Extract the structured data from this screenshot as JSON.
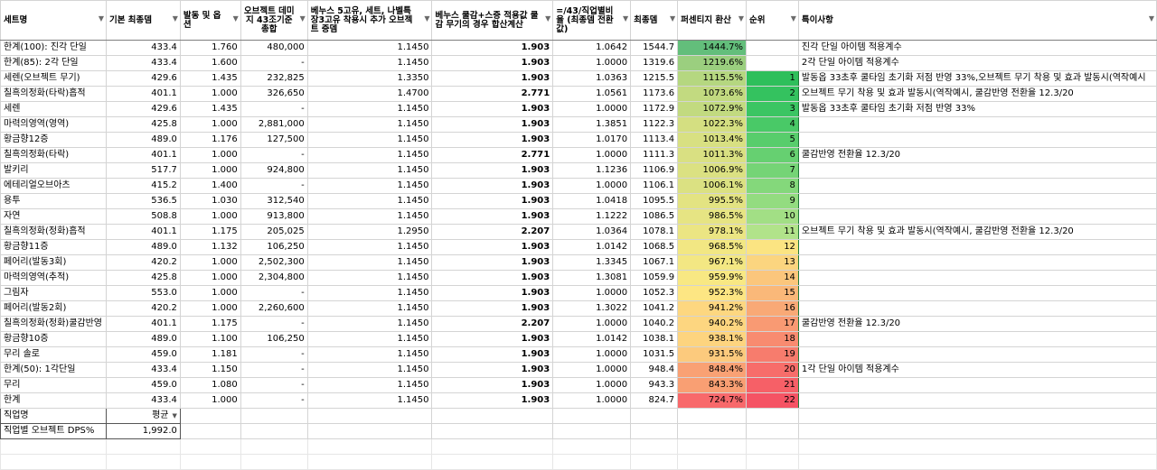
{
  "headers": [
    "세트명",
    "기본 최종뎀",
    "발동 및 옵션",
    "오브젝트 데미지 43조기준 총합",
    "베누스 5고유, 세트, 나벨특장3고유 착용시 추가 오브젝트 증뎀",
    "베누스 쿨감+스증 적용값 쿨감 무기의 경우 합산계산",
    "=/43/직업별비율 (최종뎀 전환값)",
    "최종뎀",
    "퍼센티지 환산",
    "순위",
    "특이사항"
  ],
  "rows": [
    {
      "name": "한계(100): 진각 단일",
      "base": "433.4",
      "opt": "1.760",
      "obj": "480,000",
      "inc": "1.1450",
      "cd": "1.903",
      "conv": "1.0642",
      "final": "1544.7",
      "pct": "1444.7%",
      "color": "#63be7b",
      "rank": "",
      "note": "진각 단일 아이템 적용계수"
    },
    {
      "name": "한계(85): 2각 단일",
      "base": "433.4",
      "opt": "1.600",
      "obj": "-",
      "inc": "1.1450",
      "cd": "1.903",
      "conv": "1.0000",
      "final": "1319.6",
      "pct": "1219.6%",
      "color": "#9bcf7f",
      "rank": "",
      "note": "2각 단일 아이템 적용계수"
    },
    {
      "name": "세렌(오브젝트 무기)",
      "base": "429.6",
      "opt": "1.435",
      "obj": "232,825",
      "inc": "1.3350",
      "cd": "1.903",
      "conv": "1.0363",
      "final": "1215.5",
      "pct": "1115.5%",
      "color": "#b5d780",
      "rank": "1",
      "rankColor": "#2ebf5b",
      "note": "발동옵 33초후 쿨타임 초기화 저점 반영 33%,오브젝트 무기 착용 및 효과 발동시(역작예시"
    },
    {
      "name": "칠흑의정화(타락)흡적",
      "base": "401.1",
      "opt": "1.000",
      "obj": "326,650",
      "inc": "1.4700",
      "cd": "2.771",
      "conv": "1.0561",
      "final": "1173.6",
      "pct": "1073.6%",
      "color": "#c2da80",
      "rank": "2",
      "rankColor": "#34c25f",
      "note": "오브젝트 무기 착용 및 효과 발동시(역작예시, 쿨감반영 전환율 12.3/20"
    },
    {
      "name": "세렌",
      "base": "429.6",
      "opt": "1.435",
      "obj": "-",
      "inc": "1.1450",
      "cd": "1.903",
      "conv": "1.0000",
      "final": "1172.9",
      "pct": "1072.9%",
      "color": "#c2da80",
      "rank": "3",
      "rankColor": "#3bc563",
      "note": "발동옵 33초후 쿨타임 초기화 저점 반영 33%"
    },
    {
      "name": "마력의영역(영역)",
      "base": "425.8",
      "opt": "1.000",
      "obj": "2,881,000",
      "inc": "1.1450",
      "cd": "1.903",
      "conv": "1.3851",
      "final": "1122.3",
      "pct": "1022.3%",
      "color": "#d4df81",
      "rank": "4",
      "rankColor": "#49c967",
      "note": ""
    },
    {
      "name": "황금향12증",
      "base": "489.0",
      "opt": "1.176",
      "obj": "127,500",
      "inc": "1.1450",
      "cd": "1.903",
      "conv": "1.0170",
      "final": "1113.4",
      "pct": "1013.4%",
      "color": "#d8e082",
      "rank": "5",
      "rankColor": "#58cd6c",
      "note": ""
    },
    {
      "name": "칠흑의정화(타락)",
      "base": "401.1",
      "opt": "1.000",
      "obj": "-",
      "inc": "1.1450",
      "cd": "2.771",
      "conv": "1.0000",
      "final": "1111.3",
      "pct": "1011.3%",
      "color": "#d9e082",
      "rank": "6",
      "rankColor": "#66d071",
      "note": "쿨감반영 전환율 12.3/20"
    },
    {
      "name": "발키리",
      "base": "517.7",
      "opt": "1.000",
      "obj": "924,800",
      "inc": "1.1450",
      "cd": "1.903",
      "conv": "1.1236",
      "final": "1106.9",
      "pct": "1006.9%",
      "color": "#dbe182",
      "rank": "7",
      "rankColor": "#75d476",
      "note": ""
    },
    {
      "name": "에테리얼오브아츠",
      "base": "415.2",
      "opt": "1.400",
      "obj": "-",
      "inc": "1.1450",
      "cd": "1.903",
      "conv": "1.0000",
      "final": "1106.1",
      "pct": "1006.1%",
      "color": "#dbe182",
      "rank": "8",
      "rankColor": "#84d87b",
      "note": ""
    },
    {
      "name": "용투",
      "base": "536.5",
      "opt": "1.030",
      "obj": "312,540",
      "inc": "1.1450",
      "cd": "1.903",
      "conv": "1.0418",
      "final": "1095.5",
      "pct": "995.5%",
      "color": "#e3e382",
      "rank": "9",
      "rankColor": "#93dc80",
      "note": ""
    },
    {
      "name": "자연",
      "base": "508.8",
      "opt": "1.000",
      "obj": "913,800",
      "inc": "1.1450",
      "cd": "1.903",
      "conv": "1.1222",
      "final": "1086.5",
      "pct": "986.5%",
      "color": "#e6e483",
      "rank": "10",
      "rankColor": "#a2df85",
      "note": ""
    },
    {
      "name": "칠흑의정화(정화)흡적",
      "base": "401.1",
      "opt": "1.175",
      "obj": "205,025",
      "inc": "1.2950",
      "cd": "2.207",
      "conv": "1.0364",
      "final": "1078.1",
      "pct": "978.1%",
      "color": "#ebe583",
      "rank": "11",
      "rankColor": "#b1e38a",
      "note": "오브젝트 무기 착용 및 효과 발동시(역작예시, 쿨감반영 전환율 12.3/20"
    },
    {
      "name": "황금향11증",
      "base": "489.0",
      "opt": "1.132",
      "obj": "106,250",
      "inc": "1.1450",
      "cd": "1.903",
      "conv": "1.0142",
      "final": "1068.5",
      "pct": "968.5%",
      "color": "#f2e783",
      "rank": "12",
      "rankColor": "#fbe482",
      "note": ""
    },
    {
      "name": "페어리(발동3회)",
      "base": "420.2",
      "opt": "1.000",
      "obj": "2,502,300",
      "inc": "1.1450",
      "cd": "1.903",
      "conv": "1.3345",
      "final": "1067.1",
      "pct": "967.1%",
      "color": "#f3e783",
      "rank": "13",
      "rankColor": "#fbd57f",
      "note": ""
    },
    {
      "name": "마력의영역(추적)",
      "base": "425.8",
      "opt": "1.000",
      "obj": "2,304,800",
      "inc": "1.1450",
      "cd": "1.903",
      "conv": "1.3081",
      "final": "1059.9",
      "pct": "959.9%",
      "color": "#f8e883",
      "rank": "14",
      "rankColor": "#fbc67c",
      "note": ""
    },
    {
      "name": "그림자",
      "base": "553.0",
      "opt": "1.000",
      "obj": "-",
      "inc": "1.1450",
      "cd": "1.903",
      "conv": "1.0000",
      "final": "1052.3",
      "pct": "952.3%",
      "color": "#fde683",
      "rank": "15",
      "rankColor": "#fab879",
      "note": ""
    },
    {
      "name": "페어리(발동2회)",
      "base": "420.2",
      "opt": "1.000",
      "obj": "2,260,600",
      "inc": "1.1450",
      "cd": "1.903",
      "conv": "1.3022",
      "final": "1041.2",
      "pct": "941.2%",
      "color": "#fdd780",
      "rank": "16",
      "rankColor": "#f9a976",
      "note": ""
    },
    {
      "name": "칠흑의정화(정화)쿨감반영",
      "base": "401.1",
      "opt": "1.175",
      "obj": "-",
      "inc": "1.1450",
      "cd": "2.207",
      "conv": "1.0000",
      "final": "1040.2",
      "pct": "940.2%",
      "color": "#fdd680",
      "rank": "17",
      "rankColor": "#f99a73",
      "note": "쿨감반영 전환율 12.3/20"
    },
    {
      "name": "황금향10증",
      "base": "489.0",
      "opt": "1.100",
      "obj": "106,250",
      "inc": "1.1450",
      "cd": "1.903",
      "conv": "1.0142",
      "final": "1038.1",
      "pct": "938.1%",
      "color": "#fdd47f",
      "rank": "18",
      "rankColor": "#f88b70",
      "note": ""
    },
    {
      "name": "무리 솔로",
      "base": "459.0",
      "opt": "1.181",
      "obj": "-",
      "inc": "1.1450",
      "cd": "1.903",
      "conv": "1.0000",
      "final": "1031.5",
      "pct": "931.5%",
      "color": "#fcca7d",
      "rank": "19",
      "rankColor": "#f77c6d",
      "note": ""
    },
    {
      "name": "한계(50): 1각단일",
      "base": "433.4",
      "opt": "1.150",
      "obj": "-",
      "inc": "1.1450",
      "cd": "1.903",
      "conv": "1.0000",
      "final": "948.4",
      "pct": "848.4%",
      "color": "#f9a174",
      "rank": "20",
      "rankColor": "#f76d6a",
      "note": "1각 단일 아이템 적용계수"
    },
    {
      "name": "무리",
      "base": "459.0",
      "opt": "1.080",
      "obj": "-",
      "inc": "1.1450",
      "cd": "1.903",
      "conv": "1.0000",
      "final": "943.3",
      "pct": "843.3%",
      "color": "#f99f73",
      "rank": "21",
      "rankColor": "#f66067",
      "note": ""
    },
    {
      "name": "한계",
      "base": "433.4",
      "opt": "1.000",
      "obj": "-",
      "inc": "1.1450",
      "cd": "1.903",
      "conv": "1.0000",
      "final": "824.7",
      "pct": "724.7%",
      "color": "#f8696b",
      "rank": "22",
      "rankColor": "#f55364",
      "note": ""
    }
  ],
  "footer": {
    "job_label": "직업명",
    "job_value": "평균",
    "dps_label": "직업별 오브젝트 DPS%",
    "dps_value": "1,992.0"
  }
}
